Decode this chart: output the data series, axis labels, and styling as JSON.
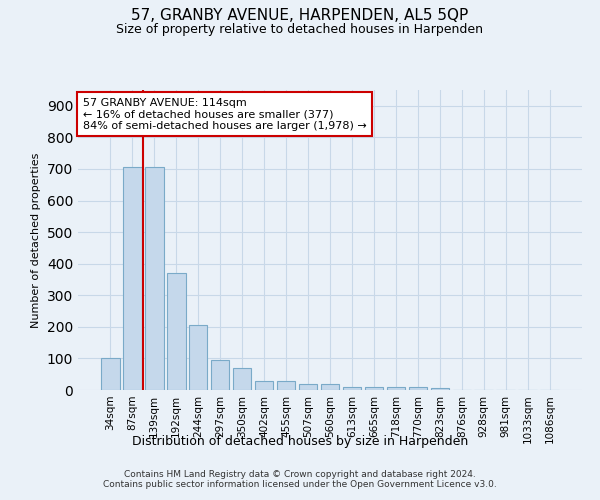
{
  "title": "57, GRANBY AVENUE, HARPENDEN, AL5 5QP",
  "subtitle": "Size of property relative to detached houses in Harpenden",
  "xlabel": "Distribution of detached houses by size in Harpenden",
  "ylabel": "Number of detached properties",
  "footer_line1": "Contains HM Land Registry data © Crown copyright and database right 2024.",
  "footer_line2": "Contains public sector information licensed under the Open Government Licence v3.0.",
  "bar_labels": [
    "34sqm",
    "87sqm",
    "139sqm",
    "192sqm",
    "244sqm",
    "297sqm",
    "350sqm",
    "402sqm",
    "455sqm",
    "507sqm",
    "560sqm",
    "613sqm",
    "665sqm",
    "718sqm",
    "770sqm",
    "823sqm",
    "876sqm",
    "928sqm",
    "981sqm",
    "1033sqm",
    "1086sqm"
  ],
  "bar_values": [
    100,
    705,
    705,
    370,
    205,
    95,
    70,
    28,
    30,
    18,
    18,
    10,
    8,
    8,
    8,
    5,
    0,
    0,
    0,
    0,
    0
  ],
  "bar_color": "#c5d8eb",
  "bar_edgecolor": "#7aaac8",
  "grid_color": "#c8d8e8",
  "background_color": "#eaf1f8",
  "plot_bg_color": "#eaf1f8",
  "vline_x": 1.5,
  "vline_color": "#cc0000",
  "annotation_text": "57 GRANBY AVENUE: 114sqm\n← 16% of detached houses are smaller (377)\n84% of semi-detached houses are larger (1,978) →",
  "annotation_box_color": "#ffffff",
  "annotation_border_color": "#cc0000",
  "ylim": [
    0,
    950
  ],
  "yticks": [
    0,
    100,
    200,
    300,
    400,
    500,
    600,
    700,
    800,
    900
  ]
}
